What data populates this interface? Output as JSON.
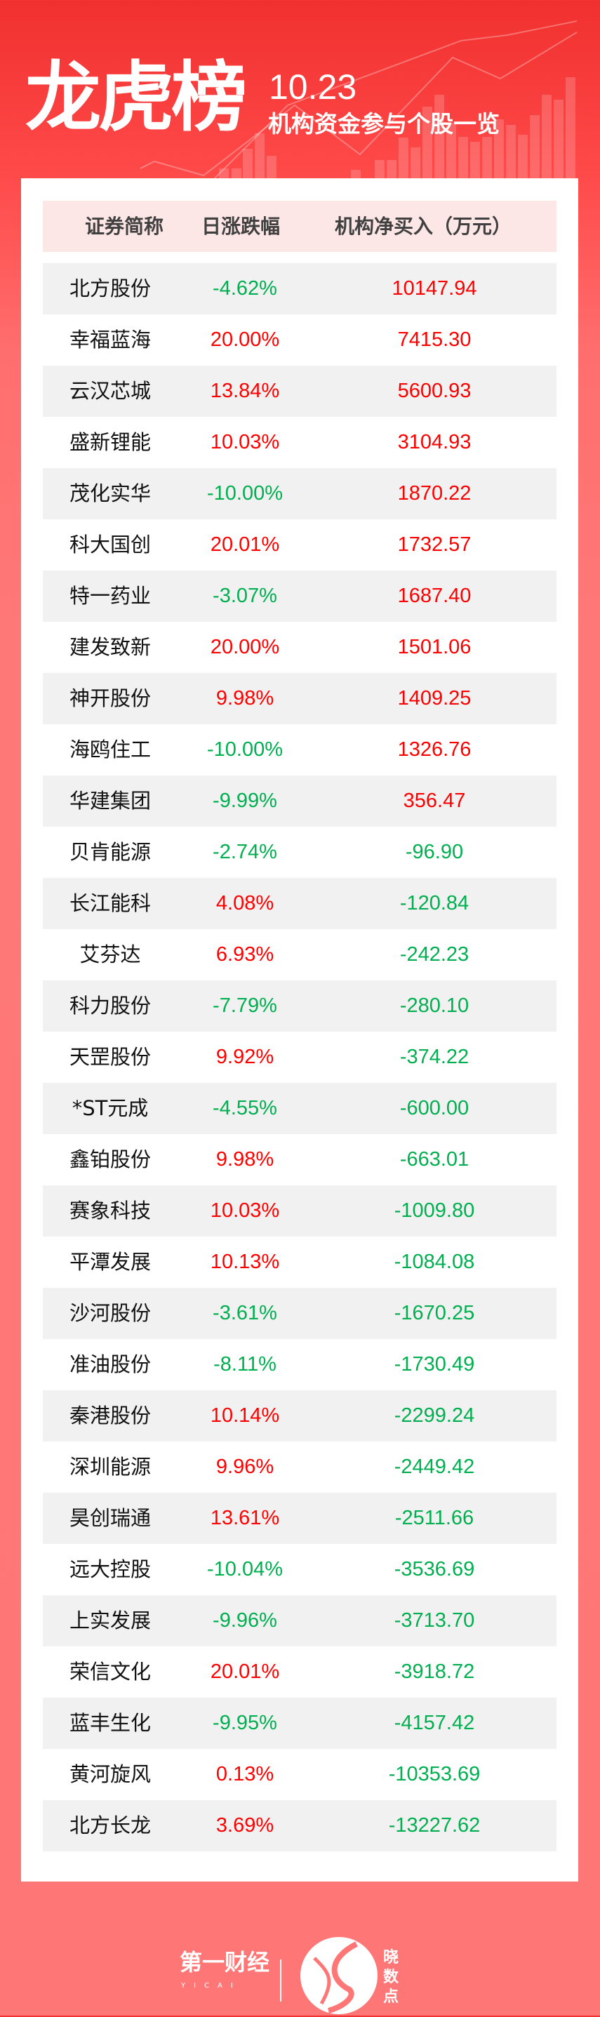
{
  "header": {
    "title": "龙虎榜",
    "date": "10.23",
    "subtitle": "机构资金参与个股一览"
  },
  "table": {
    "columns": [
      "证券简称",
      "日涨跌幅",
      "机构净买入（万元）"
    ],
    "rows": [
      {
        "name": "北方股份",
        "change": "-4.62%",
        "net_buy": "10147.94"
      },
      {
        "name": "幸福蓝海",
        "change": "20.00%",
        "net_buy": "7415.30"
      },
      {
        "name": "云汉芯城",
        "change": "13.84%",
        "net_buy": "5600.93"
      },
      {
        "name": "盛新锂能",
        "change": "10.03%",
        "net_buy": "3104.93"
      },
      {
        "name": "茂化实华",
        "change": "-10.00%",
        "net_buy": "1870.22"
      },
      {
        "name": "科大国创",
        "change": "20.01%",
        "net_buy": "1732.57"
      },
      {
        "name": "特一药业",
        "change": "-3.07%",
        "net_buy": "1687.40"
      },
      {
        "name": "建发致新",
        "change": "20.00%",
        "net_buy": "1501.06"
      },
      {
        "name": "神开股份",
        "change": "9.98%",
        "net_buy": "1409.25"
      },
      {
        "name": "海鸥住工",
        "change": "-10.00%",
        "net_buy": "1326.76"
      },
      {
        "name": "华建集团",
        "change": "-9.99%",
        "net_buy": "356.47"
      },
      {
        "name": "贝肯能源",
        "change": "-2.74%",
        "net_buy": "-96.90"
      },
      {
        "name": "长江能科",
        "change": "4.08%",
        "net_buy": "-120.84"
      },
      {
        "name": "艾芬达",
        "change": "6.93%",
        "net_buy": "-242.23"
      },
      {
        "name": "科力股份",
        "change": "-7.79%",
        "net_buy": "-280.10"
      },
      {
        "name": "天罡股份",
        "change": "9.92%",
        "net_buy": "-374.22"
      },
      {
        "name": "*ST元成",
        "change": "-4.55%",
        "net_buy": "-600.00"
      },
      {
        "name": "鑫铂股份",
        "change": "9.98%",
        "net_buy": "-663.01"
      },
      {
        "name": "赛象科技",
        "change": "10.03%",
        "net_buy": "-1009.80"
      },
      {
        "name": "平潭发展",
        "change": "10.13%",
        "net_buy": "-1084.08"
      },
      {
        "name": "沙河股份",
        "change": "-3.61%",
        "net_buy": "-1670.25"
      },
      {
        "name": "准油股份",
        "change": "-8.11%",
        "net_buy": "-1730.49"
      },
      {
        "name": "秦港股份",
        "change": "10.14%",
        "net_buy": "-2299.24"
      },
      {
        "name": "深圳能源",
        "change": "9.96%",
        "net_buy": "-2449.42"
      },
      {
        "name": "昊创瑞通",
        "change": "13.61%",
        "net_buy": "-2511.66"
      },
      {
        "name": "远大控股",
        "change": "-10.04%",
        "net_buy": "-3536.69"
      },
      {
        "name": "上实发展",
        "change": "-9.96%",
        "net_buy": "-3713.70"
      },
      {
        "name": "荣信文化",
        "change": "20.01%",
        "net_buy": "-3918.72"
      },
      {
        "name": "蓝丰生化",
        "change": "-9.95%",
        "net_buy": "-4157.42"
      },
      {
        "name": "黄河旋风",
        "change": "0.13%",
        "net_buy": "-10353.69"
      },
      {
        "name": "北方长龙",
        "change": "3.69%",
        "net_buy": "-13227.62"
      }
    ]
  },
  "colors": {
    "up": "#ff0000",
    "down": "#00b050",
    "header_bg": "#fde6e6",
    "stripe": "#f1f1f1"
  },
  "footer": {
    "brand": "第一财经",
    "brand_en": "YICAI",
    "sub_brand": "晓数点"
  }
}
